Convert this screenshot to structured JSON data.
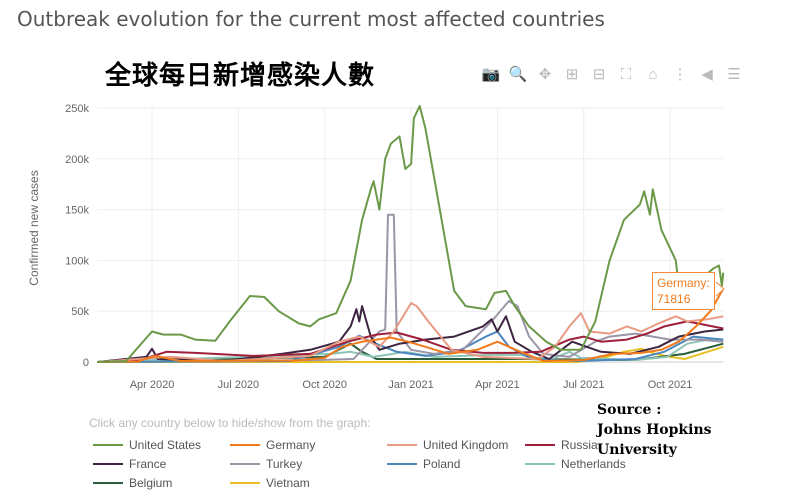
{
  "title": "Outbreak evolution for the current most affected countries",
  "overlay_title": "全球每日新增感染人數",
  "source": {
    "line1": "Source :",
    "line2": "Johns Hopkins University"
  },
  "legend_hint": "Click any country below to hide/show from the graph:",
  "toolbar": [
    {
      "icon": "camera-icon",
      "glyph": "📷"
    },
    {
      "icon": "zoom-icon",
      "glyph": "🔍",
      "active": true
    },
    {
      "icon": "pan-icon",
      "glyph": "✥"
    },
    {
      "icon": "zoom-in-icon",
      "glyph": "⊞"
    },
    {
      "icon": "zoom-out-icon",
      "glyph": "⊟"
    },
    {
      "icon": "autoscale-icon",
      "glyph": "⛶"
    },
    {
      "icon": "home-icon",
      "glyph": "⌂"
    },
    {
      "icon": "spike-lines-icon",
      "glyph": "⋮"
    },
    {
      "icon": "hover-closest-icon",
      "glyph": "◀"
    },
    {
      "icon": "hover-compare-icon",
      "glyph": "☰"
    }
  ],
  "annotation": {
    "label": "Germany:",
    "value": "71816",
    "color": "#f07a1c"
  },
  "chart_data": {
    "type": "line",
    "title": "Outbreak evolution for the current most affected countries",
    "xlabel": "",
    "ylabel": "Confirmed new cases",
    "x_unit": "months since Jan 2020",
    "xlim": [
      1.1,
      22.85
    ],
    "ylim": [
      0,
      250000
    ],
    "x_ticks": [
      {
        "m": 3,
        "label": "Apr 2020"
      },
      {
        "m": 6,
        "label": "Jul 2020"
      },
      {
        "m": 9,
        "label": "Oct 2020"
      },
      {
        "m": 12,
        "label": "Jan 2021"
      },
      {
        "m": 15,
        "label": "Apr 2021"
      },
      {
        "m": 18,
        "label": "Jul 2021"
      },
      {
        "m": 21,
        "label": "Oct 2021"
      }
    ],
    "y_ticks": [
      {
        "v": 0,
        "label": "0"
      },
      {
        "v": 50000,
        "label": "50k"
      },
      {
        "v": 100000,
        "label": "100k"
      },
      {
        "v": 150000,
        "label": "150k"
      },
      {
        "v": 200000,
        "label": "200k"
      },
      {
        "v": 250000,
        "label": "250k"
      }
    ],
    "grid": true,
    "legend_placement": "bottom",
    "series": [
      {
        "name": "United States",
        "color": "#6a9a48",
        "points": [
          [
            1.1,
            0
          ],
          [
            2.1,
            1000
          ],
          [
            3.0,
            30000
          ],
          [
            3.4,
            27000
          ],
          [
            4.0,
            27000
          ],
          [
            4.5,
            22000
          ],
          [
            5.2,
            21000
          ],
          [
            5.7,
            40000
          ],
          [
            6.4,
            65000
          ],
          [
            6.9,
            64000
          ],
          [
            7.4,
            50000
          ],
          [
            8.1,
            38000
          ],
          [
            8.5,
            35000
          ],
          [
            8.8,
            42000
          ],
          [
            9.4,
            48000
          ],
          [
            9.9,
            80000
          ],
          [
            10.3,
            140000
          ],
          [
            10.6,
            170000
          ],
          [
            10.7,
            178000
          ],
          [
            10.9,
            150000
          ],
          [
            11.1,
            200000
          ],
          [
            11.3,
            215000
          ],
          [
            11.6,
            222000
          ],
          [
            11.8,
            190000
          ],
          [
            12.0,
            195000
          ],
          [
            12.1,
            240000
          ],
          [
            12.3,
            252000
          ],
          [
            12.5,
            230000
          ],
          [
            13.0,
            150000
          ],
          [
            13.5,
            70000
          ],
          [
            13.9,
            55000
          ],
          [
            14.6,
            52000
          ],
          [
            14.9,
            68000
          ],
          [
            15.3,
            70000
          ],
          [
            15.6,
            55000
          ],
          [
            16.1,
            35000
          ],
          [
            16.7,
            20000
          ],
          [
            17.2,
            12000
          ],
          [
            17.9,
            12000
          ],
          [
            18.4,
            40000
          ],
          [
            18.9,
            100000
          ],
          [
            19.4,
            140000
          ],
          [
            19.95,
            155000
          ],
          [
            20.1,
            168000
          ],
          [
            20.3,
            145000
          ],
          [
            20.4,
            170000
          ],
          [
            20.7,
            130000
          ],
          [
            21.2,
            100000
          ],
          [
            21.3,
            75000
          ],
          [
            22.0,
            80000
          ],
          [
            22.5,
            92000
          ],
          [
            22.7,
            95000
          ],
          [
            22.8,
            75000
          ],
          [
            22.85,
            88000
          ]
        ]
      },
      {
        "name": "Germany",
        "color": "#f07a1c",
        "points": [
          [
            1.1,
            0
          ],
          [
            2.5,
            500
          ],
          [
            3.1,
            6000
          ],
          [
            4.0,
            1000
          ],
          [
            8.0,
            1500
          ],
          [
            9.0,
            4000
          ],
          [
            9.6,
            15000
          ],
          [
            10.3,
            20000
          ],
          [
            11.3,
            24000
          ],
          [
            11.9,
            20000
          ],
          [
            12.5,
            15000
          ],
          [
            13.3,
            8000
          ],
          [
            14.3,
            12000
          ],
          [
            15.0,
            20000
          ],
          [
            15.8,
            10000
          ],
          [
            16.6,
            1000
          ],
          [
            18.0,
            2000
          ],
          [
            19.0,
            8000
          ],
          [
            20.0,
            9000
          ],
          [
            20.7,
            12000
          ],
          [
            21.3,
            20000
          ],
          [
            21.9,
            35000
          ],
          [
            22.4,
            50000
          ],
          [
            22.85,
            72000
          ]
        ]
      },
      {
        "name": "United Kingdom",
        "color": "#e89a82",
        "points": [
          [
            1.1,
            0
          ],
          [
            3.0,
            4000
          ],
          [
            3.7,
            5000
          ],
          [
            5.5,
            1000
          ],
          [
            8.5,
            6000
          ],
          [
            9.5,
            20000
          ],
          [
            10.2,
            25000
          ],
          [
            10.9,
            15000
          ],
          [
            11.4,
            30000
          ],
          [
            12.0,
            58000
          ],
          [
            12.2,
            55000
          ],
          [
            12.6,
            40000
          ],
          [
            13.4,
            12000
          ],
          [
            14.5,
            5000
          ],
          [
            16.4,
            3000
          ],
          [
            17.0,
            15000
          ],
          [
            17.5,
            35000
          ],
          [
            17.9,
            48000
          ],
          [
            18.2,
            30000
          ],
          [
            18.9,
            28000
          ],
          [
            19.5,
            35000
          ],
          [
            20.0,
            30000
          ],
          [
            20.6,
            38000
          ],
          [
            21.2,
            45000
          ],
          [
            21.6,
            40000
          ],
          [
            22.3,
            42000
          ],
          [
            22.85,
            45000
          ]
        ]
      },
      {
        "name": "Russia",
        "color": "#9e1f3a",
        "points": [
          [
            1.1,
            0
          ],
          [
            2.6,
            2000
          ],
          [
            3.5,
            10000
          ],
          [
            4.5,
            9000
          ],
          [
            6.5,
            6000
          ],
          [
            8.5,
            8000
          ],
          [
            9.8,
            20000
          ],
          [
            10.8,
            27000
          ],
          [
            11.5,
            29000
          ],
          [
            12.4,
            22000
          ],
          [
            13.4,
            12000
          ],
          [
            14.5,
            9000
          ],
          [
            15.5,
            9000
          ],
          [
            16.5,
            10000
          ],
          [
            17.5,
            22000
          ],
          [
            18.0,
            25000
          ],
          [
            18.6,
            20000
          ],
          [
            19.5,
            22000
          ],
          [
            20.2,
            28000
          ],
          [
            20.8,
            35000
          ],
          [
            21.6,
            40000
          ],
          [
            22.3,
            36000
          ],
          [
            22.85,
            33000
          ]
        ]
      },
      {
        "name": "France",
        "color": "#3d2440",
        "points": [
          [
            1.1,
            0
          ],
          [
            2.8,
            5000
          ],
          [
            3.0,
            13000
          ],
          [
            3.2,
            3000
          ],
          [
            5.5,
            1000
          ],
          [
            7.5,
            8000
          ],
          [
            8.5,
            12000
          ],
          [
            9.5,
            20000
          ],
          [
            9.9,
            35000
          ],
          [
            10.1,
            52000
          ],
          [
            10.2,
            40000
          ],
          [
            10.3,
            55000
          ],
          [
            10.6,
            25000
          ],
          [
            10.9,
            12000
          ],
          [
            11.6,
            18000
          ],
          [
            12.5,
            22000
          ],
          [
            13.5,
            25000
          ],
          [
            14.5,
            35000
          ],
          [
            14.8,
            42000
          ],
          [
            15.0,
            30000
          ],
          [
            15.3,
            45000
          ],
          [
            15.6,
            20000
          ],
          [
            16.2,
            10000
          ],
          [
            16.8,
            3000
          ],
          [
            17.6,
            20000
          ],
          [
            18.1,
            15000
          ],
          [
            18.6,
            10000
          ],
          [
            19.6,
            8000
          ],
          [
            20.6,
            15000
          ],
          [
            21.3,
            25000
          ],
          [
            22.2,
            30000
          ],
          [
            22.85,
            32000
          ]
        ]
      },
      {
        "name": "Turkey",
        "color": "#9b95a6",
        "points": [
          [
            1.1,
            0
          ],
          [
            3.1,
            4000
          ],
          [
            5.0,
            1000
          ],
          [
            8.8,
            2000
          ],
          [
            10.0,
            3000
          ],
          [
            10.9,
            30000
          ],
          [
            11.1,
            32000
          ],
          [
            11.2,
            145000
          ],
          [
            11.4,
            145000
          ],
          [
            11.5,
            30000
          ],
          [
            12.0,
            12000
          ],
          [
            12.8,
            8000
          ],
          [
            13.8,
            12000
          ],
          [
            14.8,
            40000
          ],
          [
            15.4,
            60000
          ],
          [
            15.7,
            55000
          ],
          [
            16.1,
            25000
          ],
          [
            16.6,
            8000
          ],
          [
            17.5,
            5000
          ],
          [
            18.4,
            20000
          ],
          [
            18.9,
            25000
          ],
          [
            19.8,
            28000
          ],
          [
            20.4,
            25000
          ],
          [
            21.0,
            22000
          ],
          [
            22.0,
            22000
          ],
          [
            22.85,
            20000
          ]
        ]
      },
      {
        "name": "Poland",
        "color": "#4a86c0",
        "points": [
          [
            1.1,
            0
          ],
          [
            7.8,
            1000
          ],
          [
            9.5,
            15000
          ],
          [
            10.2,
            26000
          ],
          [
            10.6,
            20000
          ],
          [
            11.5,
            10000
          ],
          [
            12.5,
            6000
          ],
          [
            13.6,
            10000
          ],
          [
            14.6,
            25000
          ],
          [
            15.0,
            30000
          ],
          [
            15.4,
            15000
          ],
          [
            16.2,
            3000
          ],
          [
            17.8,
            1000
          ],
          [
            19.8,
            3000
          ],
          [
            20.8,
            10000
          ],
          [
            21.8,
            25000
          ],
          [
            22.85,
            22000
          ]
        ]
      },
      {
        "name": "Netherlands",
        "color": "#8ec4b5",
        "points": [
          [
            1.1,
            0
          ],
          [
            9.2,
            8000
          ],
          [
            9.9,
            10000
          ],
          [
            10.7,
            5000
          ],
          [
            11.8,
            10000
          ],
          [
            12.8,
            5000
          ],
          [
            14.8,
            7000
          ],
          [
            15.8,
            7000
          ],
          [
            16.8,
            2000
          ],
          [
            17.5,
            10000
          ],
          [
            17.9,
            4000
          ],
          [
            19.8,
            2000
          ],
          [
            20.9,
            5000
          ],
          [
            21.6,
            18000
          ],
          [
            22.3,
            22000
          ],
          [
            22.85,
            20000
          ]
        ]
      },
      {
        "name": "Belgium",
        "color": "#2a5e3a",
        "points": [
          [
            1.1,
            0
          ],
          [
            9.0,
            5000
          ],
          [
            9.9,
            18000
          ],
          [
            10.3,
            10000
          ],
          [
            10.8,
            3000
          ],
          [
            15.8,
            3000
          ],
          [
            19.8,
            2000
          ],
          [
            21.5,
            8000
          ],
          [
            22.85,
            18000
          ]
        ]
      },
      {
        "name": "Vietnam",
        "color": "#e8c020",
        "points": [
          [
            1.1,
            0
          ],
          [
            17.8,
            0
          ],
          [
            18.8,
            5000
          ],
          [
            19.4,
            10000
          ],
          [
            20.0,
            13000
          ],
          [
            20.5,
            8000
          ],
          [
            21.0,
            5000
          ],
          [
            21.5,
            3000
          ],
          [
            22.3,
            10000
          ],
          [
            22.85,
            15000
          ]
        ]
      }
    ]
  }
}
